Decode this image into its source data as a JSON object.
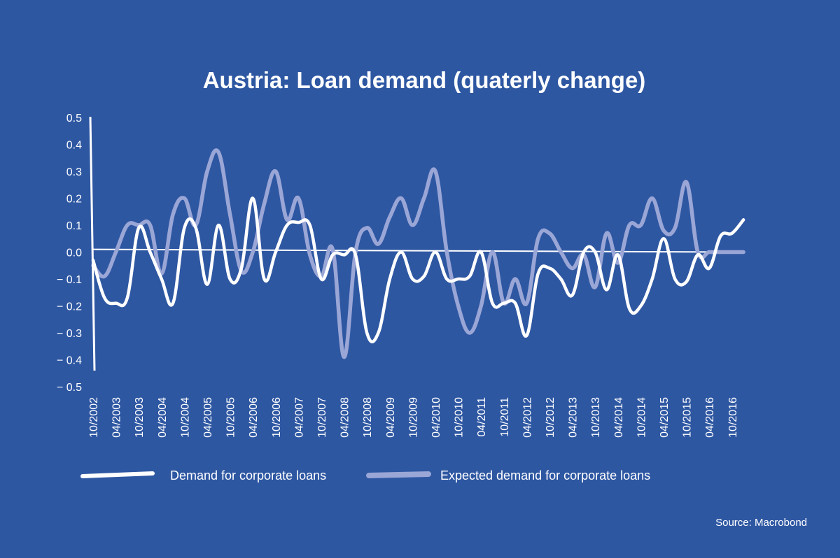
{
  "chart_data": {
    "type": "line",
    "title": "Austria: Loan demand (quaterly change)",
    "xlabel": "",
    "ylabel": "",
    "ylim": [
      -0.5,
      0.5
    ],
    "yticks": [
      "0.5",
      "0.4",
      "0.3",
      "0.2",
      "0.1",
      "0.0",
      "− 0.1",
      "− 0.2",
      "− 0.3",
      "− 0.4",
      "− 0.5"
    ],
    "x_tick_labels": [
      "10/2002",
      "04/2003",
      "10/2003",
      "04/2004",
      "10/2004",
      "04/2005",
      "10/2005",
      "04/2006",
      "10/2006",
      "04/2007",
      "10/2007",
      "04/2008",
      "10/2008",
      "04/2009",
      "10/2009",
      "04/2010",
      "10/2010",
      "04/2011",
      "10/2011",
      "04/2012",
      "10/2012",
      "04/2013",
      "10/2013",
      "04/2014",
      "10/2014",
      "04/2015",
      "10/2015",
      "04/2016",
      "10/2016"
    ],
    "series": [
      {
        "name": "Demand for corporate loans",
        "color": "#ffffff",
        "x": [
          0,
          0.5,
          1,
          1.5,
          2,
          2.5,
          3,
          3.5,
          4,
          4.5,
          5,
          5.5,
          6,
          6.5,
          7,
          7.5,
          8,
          8.5,
          9,
          9.5,
          10,
          10.5,
          11,
          11.5,
          12,
          12.5,
          13,
          13.5,
          14,
          14.5,
          15,
          15.5,
          16,
          16.5,
          17,
          17.5,
          18,
          18.5,
          19,
          19.5,
          20,
          20.5,
          21,
          21.5,
          22,
          22.5,
          23,
          23.5,
          24,
          24.5,
          25,
          25.5,
          26,
          26.5,
          27,
          27.5,
          28,
          28.5
        ],
        "values": [
          -0.03,
          -0.17,
          -0.19,
          -0.17,
          0.09,
          0.0,
          -0.1,
          -0.19,
          0.09,
          0.09,
          -0.12,
          0.1,
          -0.1,
          -0.06,
          0.2,
          -0.1,
          0.0,
          0.1,
          0.11,
          0.1,
          -0.1,
          -0.01,
          -0.01,
          -0.01,
          -0.3,
          -0.3,
          -0.1,
          0.0,
          -0.1,
          -0.09,
          0.0,
          -0.1,
          -0.1,
          -0.09,
          0.0,
          -0.19,
          -0.19,
          -0.19,
          -0.31,
          -0.08,
          -0.06,
          -0.1,
          -0.16,
          0.0,
          0.0,
          -0.14,
          -0.01,
          -0.21,
          -0.2,
          -0.1,
          0.05,
          -0.1,
          -0.11,
          -0.01,
          -0.06,
          0.06,
          0.07,
          0.12
        ]
      },
      {
        "name": "Expected demand for corporate loans",
        "color": "#9aa6d6",
        "x": [
          0,
          0.5,
          1,
          1.5,
          2,
          2.5,
          3,
          3.5,
          4,
          4.5,
          5,
          5.5,
          6,
          6.5,
          7,
          7.5,
          8,
          8.5,
          9,
          9.5,
          10,
          10.5,
          11,
          11.5,
          12,
          12.5,
          13,
          13.5,
          14,
          14.5,
          15,
          15.5,
          16,
          16.5,
          17,
          17.5,
          18,
          18.5,
          19,
          19.5,
          20,
          20.5,
          21,
          21.5,
          22,
          22.5,
          23,
          23.5,
          24,
          24.5,
          25,
          25.5,
          26,
          26.5,
          27,
          27.5,
          28,
          28.5
        ],
        "values": [
          -0.05,
          -0.09,
          0.0,
          0.1,
          0.1,
          0.1,
          -0.08,
          0.14,
          0.2,
          0.1,
          0.3,
          0.37,
          0.14,
          -0.07,
          0.0,
          0.18,
          0.3,
          0.12,
          0.2,
          -0.01,
          -0.09,
          0.01,
          -0.39,
          0.0,
          0.09,
          0.03,
          0.13,
          0.2,
          0.1,
          0.2,
          0.3,
          0.0,
          -0.2,
          -0.3,
          -0.2,
          0.0,
          -0.19,
          -0.1,
          -0.19,
          0.05,
          0.07,
          0.0,
          -0.06,
          -0.01,
          -0.13,
          0.07,
          -0.04,
          0.1,
          0.1,
          0.2,
          0.08,
          0.09,
          0.26,
          0.0,
          0.0,
          0.0,
          0.0,
          0.0
        ]
      }
    ],
    "trend": [
      {
        "x": 0,
        "y": 0.01
      },
      {
        "x": 28.2,
        "y": 0.0
      }
    ]
  },
  "source": "Source: Macrobond"
}
